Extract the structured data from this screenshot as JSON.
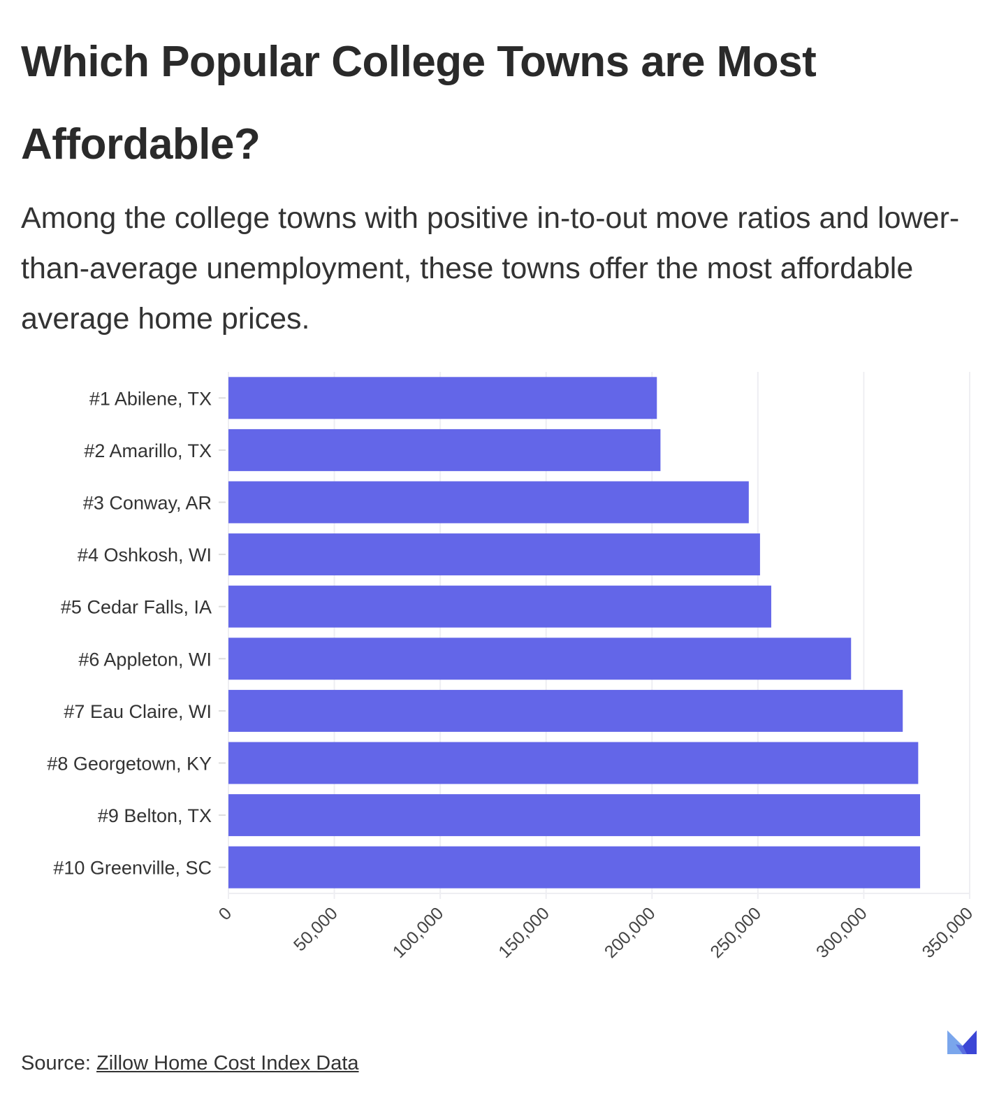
{
  "title": "Which Popular College Towns are Most Affordable?",
  "subtitle": "Among the college towns with positive in-to-out move ratios and lower-than-average unemployment, these towns offer the most affordable average home prices.",
  "source": {
    "label": "Source:",
    "link_text": "Zillow Home Cost Index Data"
  },
  "colors": {
    "bar": "#6366e8",
    "grid": "#eeeef2"
  },
  "logo": "brand-m-logo",
  "chart_data": {
    "type": "bar",
    "orientation": "horizontal",
    "categories": [
      "#1 Abilene, TX",
      "#2 Amarillo, TX",
      "#3 Conway, AR",
      "#4 Oshkosh, WI",
      "#5 Cedar Falls, IA",
      "#6 Appleton, WI",
      "#7 Eau Claire, WI",
      "#8 Georgetown, KY",
      "#9 Belton, TX",
      "#10 Greenville, SC"
    ],
    "values": [
      202300,
      204000,
      245700,
      251000,
      256300,
      294000,
      318400,
      325700,
      326600,
      326600
    ],
    "xlim": [
      0,
      350000
    ],
    "xticks": [
      "0",
      "50,000",
      "100,000",
      "150,000",
      "200,000",
      "250,000",
      "300,000",
      "350,000"
    ],
    "grid": true
  }
}
